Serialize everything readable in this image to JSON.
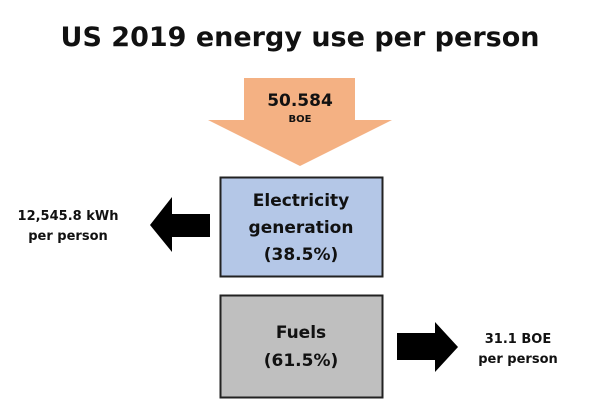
{
  "title": "US 2019 energy use per person",
  "input": {
    "value": "50.584",
    "unit": "BOE"
  },
  "electricity": {
    "line1": "Electricity",
    "line2": "generation",
    "share": "(38.5%)"
  },
  "fuels": {
    "line1": "Fuels",
    "share": "(61.5%)"
  },
  "electricity_output": {
    "line1": "12,545.8 kWh",
    "line2": "per person"
  },
  "fuels_output": {
    "line1": "31.1 BOE",
    "line2": "per person"
  },
  "colors": {
    "input_arrow": "#f4b183",
    "electricity_box": "#b4c7e7",
    "fuels_box": "#bfbfbf",
    "output_arrow": "#000000"
  }
}
